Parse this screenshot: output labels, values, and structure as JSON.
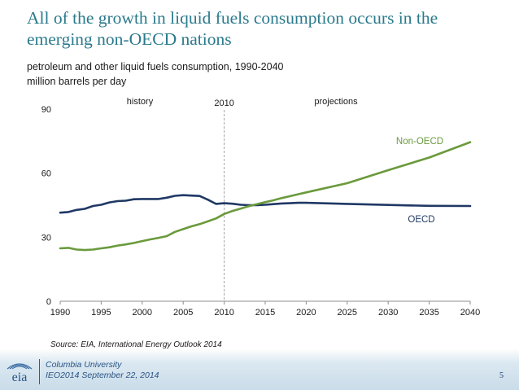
{
  "slide": {
    "title": "All of the growth in liquid fuels consumption occurs in the emerging non-OECD nations",
    "subtitle_line1": "petroleum and other liquid fuels consumption, 1990-2040",
    "subtitle_line2": "million barrels per day",
    "source": "Source:  EIA, International Energy Outlook 2014",
    "footer_line1": "Columbia University",
    "footer_line2": "IEO2014 September 22, 2014",
    "page_number": "5",
    "logo_text": "eia"
  },
  "chart_data": {
    "type": "line",
    "title": "",
    "xlabel": "",
    "ylabel": "",
    "xlim": [
      1990,
      2040
    ],
    "ylim": [
      0,
      90
    ],
    "x_ticks": [
      "1990",
      "1995",
      "2000",
      "2005",
      "2010",
      "2015",
      "2020",
      "2025",
      "2030",
      "2035",
      "2040"
    ],
    "y_ticks": [
      "0",
      "30",
      "60",
      "90"
    ],
    "grid": false,
    "annotations": {
      "history": "history",
      "divider": "2010",
      "projections": "projections",
      "divider_x": 2010
    },
    "series": [
      {
        "name": "OECD",
        "color": "#1f3864",
        "x": [
          1990,
          1991,
          1992,
          1993,
          1994,
          1995,
          1996,
          1997,
          1998,
          1999,
          2000,
          2001,
          2002,
          2003,
          2004,
          2005,
          2006,
          2007,
          2008,
          2009,
          2010,
          2011,
          2012,
          2013,
          2014,
          2015,
          2016,
          2017,
          2018,
          2019,
          2020,
          2025,
          2030,
          2035,
          2040
        ],
        "values": [
          41.5,
          41.8,
          42.8,
          43.3,
          44.6,
          45.2,
          46.3,
          46.9,
          47.1,
          47.8,
          47.9,
          47.9,
          47.9,
          48.5,
          49.4,
          49.7,
          49.5,
          49.3,
          47.6,
          45.6,
          45.9,
          45.7,
          45.2,
          45.0,
          45.0,
          45.2,
          45.5,
          45.8,
          45.9,
          46.1,
          46.1,
          45.6,
          45.1,
          44.7,
          44.6
        ]
      },
      {
        "name": "Non-OECD",
        "color": "#6a9a3c",
        "x": [
          1990,
          1991,
          1992,
          1993,
          1994,
          1995,
          1996,
          1997,
          1998,
          1999,
          2000,
          2001,
          2002,
          2003,
          2004,
          2005,
          2006,
          2007,
          2008,
          2009,
          2010,
          2011,
          2012,
          2013,
          2014,
          2015,
          2016,
          2017,
          2018,
          2019,
          2020,
          2025,
          2030,
          2035,
          2040
        ],
        "values": [
          24.8,
          25.0,
          24.2,
          24.0,
          24.2,
          24.8,
          25.3,
          26.1,
          26.6,
          27.3,
          28.2,
          29.0,
          29.7,
          30.5,
          32.5,
          33.8,
          35.1,
          36.1,
          37.4,
          38.8,
          40.9,
          42.3,
          43.4,
          44.5,
          45.5,
          46.4,
          47.3,
          48.3,
          49.2,
          50.1,
          51.0,
          55.3,
          61.4,
          67.3,
          74.5
        ]
      }
    ]
  }
}
